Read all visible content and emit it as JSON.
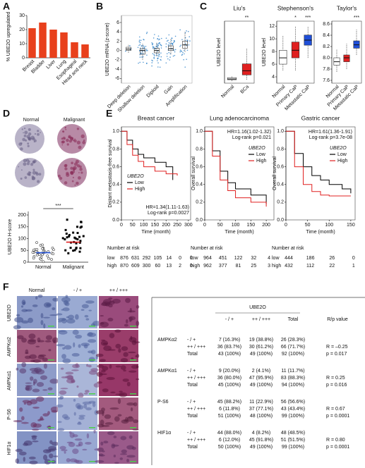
{
  "panel_labels": [
    "A",
    "B",
    "C",
    "D",
    "E",
    "F"
  ],
  "a": {
    "type": "bar",
    "ylabel": "% UBE2O upregulated",
    "categories": [
      "Breast",
      "Bladder",
      "Liver",
      "Lung",
      "Esophageal",
      "Head and neck"
    ],
    "values": [
      21,
      25,
      20,
      18,
      11,
      9.5
    ],
    "color": "#e8401c",
    "ylim": [
      0,
      30
    ],
    "yticks": [
      0,
      10,
      20,
      30
    ]
  },
  "b": {
    "type": "box",
    "ylabel": "UBE2O mRNA (z-score)",
    "categories": [
      "Deep deletion",
      "Shallow deletion",
      "Diploid",
      "Gain",
      "Amplification"
    ],
    "boxes": [
      [
        -0.5,
        0,
        0.3,
        0.7,
        1.2
      ],
      [
        -2,
        -0.8,
        0,
        0.4,
        1.5
      ],
      [
        -1.2,
        -0.5,
        0,
        0.5,
        1.8
      ],
      [
        -0.8,
        0,
        0.4,
        1,
        2.5
      ],
      [
        -0.3,
        0.5,
        1.2,
        2,
        4
      ]
    ],
    "color": "#2a7fc8",
    "ylim": [
      -7,
      7.5
    ],
    "yticks": [
      -6,
      -4,
      -2,
      0,
      2,
      4,
      6
    ]
  },
  "c": [
    {
      "type": "box",
      "title": "Liu's",
      "ylabel": "UBE2O level",
      "categories": [
        "Normal",
        "BCa"
      ],
      "boxes": [
        [
          0.3,
          0.5,
          0.6,
          0.8,
          1.0
        ],
        [
          0.5,
          1.2,
          1.8,
          2.8,
          5
        ]
      ],
      "colors": [
        "#ffffff",
        "#e02020"
      ],
      "ylim": [
        0,
        9
      ],
      "annotations": [
        "**"
      ]
    },
    {
      "type": "box",
      "title": "Stephenson's",
      "ylabel": "UBE2O level",
      "categories": [
        "Normal",
        "Primary CaP",
        "Metastatic CaP"
      ],
      "boxes": [
        [
          5,
          6,
          7,
          8.2,
          10.5
        ],
        [
          5,
          7,
          8.2,
          9.5,
          12
        ],
        [
          7,
          9,
          9.8,
          10.6,
          12
        ]
      ],
      "colors": [
        "#ffffff",
        "#e02020",
        "#1f4fd8"
      ],
      "ylim": [
        3,
        12.8
      ],
      "yticks": [
        4,
        6,
        8,
        10,
        12
      ],
      "annotations": [
        "*",
        "***"
      ]
    },
    {
      "type": "box",
      "title": "Taylor's",
      "categories": [
        "Normal",
        "Primary CaP",
        "Metastatic CaP"
      ],
      "boxes": [
        [
          7.75,
          7.87,
          7.93,
          8.0,
          8.15
        ],
        [
          7.8,
          7.93,
          8.0,
          8.05,
          8.25
        ],
        [
          8.05,
          8.17,
          8.23,
          8.3,
          8.5
        ]
      ],
      "colors": [
        "#ffffff",
        "#e02020",
        "#1f4fd8"
      ],
      "ylim": [
        7.55,
        8.65
      ],
      "yticks": [
        7.6,
        7.8,
        {
          "value": 8,
          "label": "8.0"
        },
        8.2,
        8.4,
        8.6
      ],
      "annotations": [
        "***"
      ]
    }
  ],
  "d": {
    "type": "dot",
    "image_labels": [
      "Normal",
      "Malignant"
    ],
    "ylabel": "UBE2O H-score",
    "categories": [
      "Normal",
      "Malignant"
    ],
    "means": [
      40,
      85
    ],
    "ylim": [
      0,
      215
    ],
    "yticks": [
      0,
      50,
      100,
      150,
      200
    ],
    "annotations": [
      "***"
    ]
  },
  "e": [
    {
      "type": "km",
      "title": "Breast cancer",
      "ylabel": "Distant metastasis-free survival",
      "xlabel": "Time (month)",
      "xlim": [
        0,
        310
      ],
      "xticks": [
        0,
        50,
        100,
        150,
        200,
        250,
        300
      ],
      "ylim": [
        0,
        1.05
      ],
      "yticks": [
        {
          "value": 0,
          "label": "0.0"
        },
        0.2,
        0.4,
        0.6,
        0.8,
        {
          "value": 1,
          "label": "1.0"
        }
      ],
      "legend_title": "UBE2O",
      "series": [
        {
          "name": "Low",
          "color": "#000000",
          "x": [
            0,
            25,
            50,
            75,
            100,
            150,
            200,
            230
          ],
          "values": [
            1,
            0.9,
            0.8,
            0.74,
            0.7,
            0.65,
            0.6,
            0.45
          ]
        },
        {
          "name": "High",
          "color": "#e02020",
          "x": [
            0,
            25,
            50,
            75,
            100,
            150,
            200,
            250
          ],
          "values": [
            1,
            0.85,
            0.73,
            0.66,
            0.6,
            0.55,
            0.52,
            0.5
          ]
        }
      ],
      "annotations": [
        "HR=1.34(1.11-1.63)",
        "Log-rank p=0.0027"
      ],
      "risk": {
        "title": "Number at risk",
        "rows": [
          {
            "name": "low",
            "values": [
              876,
              631,
              292,
              105,
              14,
              0,
              0
            ]
          },
          {
            "name": "high",
            "values": [
              870,
              609,
              300,
              60,
              13,
              2,
              0
            ]
          }
        ]
      }
    },
    {
      "type": "km",
      "title": "Lung adenocarcinoma",
      "ylabel": "Overall survival",
      "xlabel": "Time (month)",
      "xlim": [
        0,
        225
      ],
      "xticks": [
        0,
        50,
        100,
        150,
        200
      ],
      "ylim": [
        0,
        1.05
      ],
      "yticks": [
        {
          "value": 0,
          "label": "0.0"
        },
        0.2,
        0.4,
        0.6,
        0.8,
        {
          "value": 1,
          "label": "1.0"
        }
      ],
      "legend_title": "UBE2O",
      "series": [
        {
          "name": "Low",
          "color": "#000000",
          "x": [
            0,
            25,
            50,
            75,
            100,
            150,
            200
          ],
          "values": [
            1,
            0.78,
            0.55,
            0.42,
            0.35,
            0.28,
            0.18
          ]
        },
        {
          "name": "High",
          "color": "#e02020",
          "x": [
            0,
            25,
            50,
            75,
            100,
            150,
            200
          ],
          "values": [
            1,
            0.72,
            0.45,
            0.33,
            0.25,
            0.2,
            0.15
          ]
        }
      ],
      "annotations": [
        "HR=1.16(1.02-1.32)",
        "Log-rank p=0.021"
      ],
      "risk": {
        "title": "Number at risk",
        "rows": [
          {
            "name": "low",
            "values": [
              964,
              451,
              122,
              32,
              4
            ]
          },
          {
            "name": "high",
            "values": [
              962,
              377,
              81,
              25,
              3
            ]
          }
        ]
      }
    },
    {
      "type": "km",
      "title": "Gastric cancer",
      "ylabel": "Overall survival",
      "xlabel": "Time (month)",
      "xlim": [
        0,
        160
      ],
      "xticks": [
        0,
        50,
        100,
        150
      ],
      "ylim": [
        0,
        1.05
      ],
      "yticks": [
        {
          "value": 0,
          "label": "0.0"
        },
        0.2,
        0.4,
        0.6,
        0.8,
        {
          "value": 1,
          "label": "1.0"
        }
      ],
      "legend_title": "UBE2O",
      "series": [
        {
          "name": "Low",
          "color": "#000000",
          "x": [
            0,
            20,
            40,
            60,
            80,
            100,
            130,
            150
          ],
          "values": [
            1,
            0.75,
            0.6,
            0.5,
            0.45,
            0.4,
            0.35,
            0.3
          ]
        },
        {
          "name": "High",
          "color": "#e02020",
          "x": [
            0,
            20,
            40,
            60,
            80,
            100,
            130,
            150
          ],
          "values": [
            1,
            0.6,
            0.4,
            0.32,
            0.28,
            0.27,
            0.27,
            0.27
          ]
        }
      ],
      "annotations": [
        "HR=1.61(1.36-1.91)",
        "Log-rank p=3.7e-08"
      ],
      "risk": {
        "title": "Number at risk",
        "rows": [
          {
            "name": "low",
            "values": [
              444,
              186,
              26,
              0
            ]
          },
          {
            "name": "high",
            "values": [
              432,
              112,
              22,
              1
            ]
          }
        ]
      }
    }
  ],
  "f": {
    "row_labels": [
      "UBE2O",
      "AMPKα2",
      "AMPKα1",
      "P-S6",
      "HIF1α"
    ],
    "column_labels": [
      "Normal",
      "- / +",
      "++ / +++"
    ],
    "table": {
      "title": "UBE2O",
      "header": [
        "- / +",
        "++ / +++",
        "Total",
        "R/p value"
      ],
      "groups": [
        {
          "name": "AMPKα2",
          "rows": [
            [
              "- / +",
              "7 (16.3%)",
              "19 (38.8%)",
              "26 (28.3%)"
            ],
            [
              "++ / +++",
              "36 (83.7%)",
              "30 (61.2%)",
              "66 (71.7%)"
            ],
            [
              "Total",
              "43 (100%)",
              "49 (100%)",
              "92 (100%)"
            ]
          ],
          "r": "R = –0.25",
          "p": "p = 0.017"
        },
        {
          "name": "AMPKα1",
          "rows": [
            [
              "- / +",
              "9 (20.0%)",
              "2 (4.1%)",
              "11 (11.7%)"
            ],
            [
              "++ / +++",
              "36 (80.0%)",
              "47 (95.9%)",
              "83 (88.3%)"
            ],
            [
              "Total",
              "45 (100%)",
              "49 (100%)",
              "94 (100%)"
            ]
          ],
          "r": "R = 0.25",
          "p": "p = 0.016"
        },
        {
          "name": "P-S6",
          "rows": [
            [
              "- / +",
              "45 (88.2%)",
              "11 (22.9%)",
              "56 (56.6%)"
            ],
            [
              "++ / +++",
              "6 (11.8%)",
              "37 (77.1%)",
              "43 (43.4%)"
            ],
            [
              "Total",
              "51 (100%)",
              "48 (100%)",
              "99 (100%)"
            ]
          ],
          "r": "R = 0.67",
          "p": "p = 0.0001"
        },
        {
          "name": "HIF1α",
          "rows": [
            [
              "- / +",
              "44 (88.0%)",
              "4 (8.2%)",
              "48 (48.5%)"
            ],
            [
              "++ / +++",
              "6 (12.0%)",
              "45 (91.8%)",
              "51 (51.5%)"
            ],
            [
              "Total",
              "50 (100%)",
              "49 (100%)",
              "99 (100%)"
            ]
          ],
          "r": "R = 0.80",
          "p": "p = 0.0001"
        }
      ]
    }
  }
}
